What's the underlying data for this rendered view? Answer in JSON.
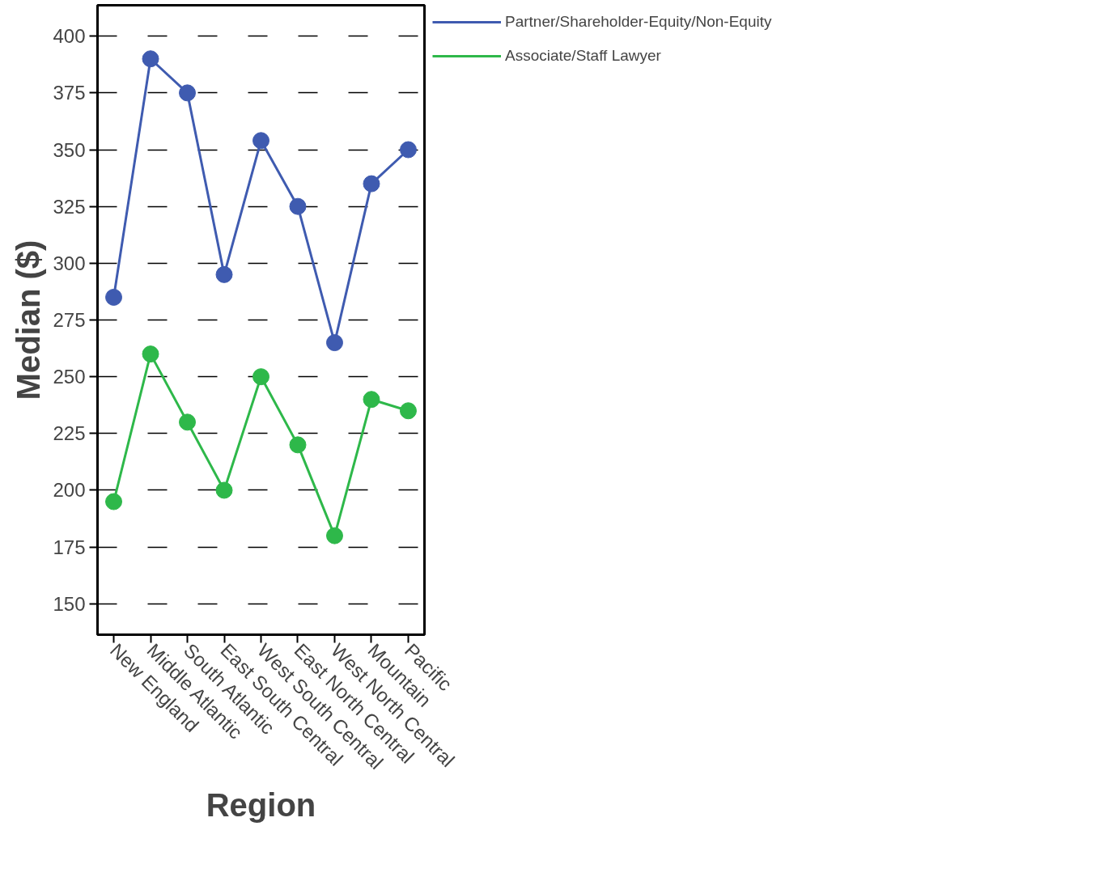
{
  "chart_data": {
    "type": "line",
    "xlabel": "Region",
    "ylabel": "Median ($)",
    "categories": [
      "New England",
      "Middle Atlantic",
      "South Atlantic",
      "East South Central",
      "West South Central",
      "East North Central",
      "West North Central",
      "Mountain",
      "Pacific"
    ],
    "series": [
      {
        "name": "Partner/Shareholder-Equity/Non-Equity",
        "color": "#3f5bb0",
        "values": [
          285,
          390,
          375,
          295,
          354,
          325,
          265,
          335,
          350
        ]
      },
      {
        "name": "Associate/Staff Lawyer",
        "color": "#2eb84a",
        "values": [
          195,
          260,
          230,
          200,
          250,
          220,
          180,
          240,
          235
        ]
      }
    ],
    "ylim": [
      136.4,
      413.6
    ],
    "yticks": [
      150,
      175,
      200,
      225,
      250,
      275,
      300,
      325,
      350,
      375,
      400
    ],
    "grid": "y",
    "legend": "top right",
    "marker": "circle",
    "line_style": "solid"
  }
}
